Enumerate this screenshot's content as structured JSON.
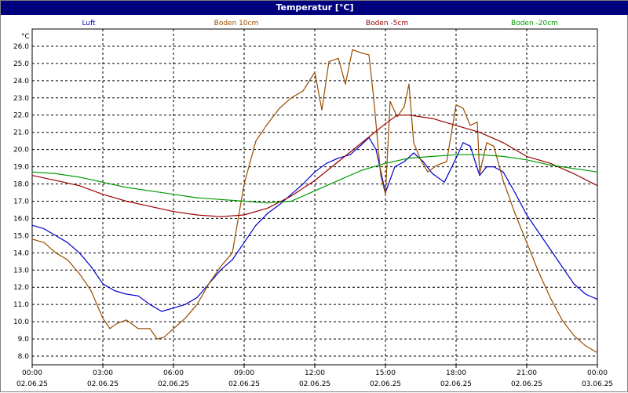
{
  "window": {
    "title": "Temperatur [°C]"
  },
  "chart_data": {
    "type": "line",
    "title": "Temperatur [°C]",
    "ylabel": "°C",
    "ylim": [
      7.5,
      27
    ],
    "grid": true,
    "legend_placement": "top",
    "y_ticks": [
      8.0,
      9.0,
      10.0,
      11.0,
      12.0,
      13.0,
      14.0,
      15.0,
      16.0,
      17.0,
      18.0,
      19.0,
      20.0,
      21.0,
      22.0,
      23.0,
      24.0,
      25.0,
      26.0
    ],
    "x_range_hours": [
      0,
      24
    ],
    "x_ticks": [
      {
        "h": 0,
        "time": "00:00",
        "date": "02.06.25"
      },
      {
        "h": 3,
        "time": "03:00",
        "date": "02.06.25"
      },
      {
        "h": 6,
        "time": "06:00",
        "date": "02.06.25"
      },
      {
        "h": 9,
        "time": "09:00",
        "date": "02.06.25"
      },
      {
        "h": 12,
        "time": "12:00",
        "date": "02.06.25"
      },
      {
        "h": 15,
        "time": "15:00",
        "date": "02.06.25"
      },
      {
        "h": 18,
        "time": "18:00",
        "date": "02.06.25"
      },
      {
        "h": 21,
        "time": "21:00",
        "date": "02.06.25"
      },
      {
        "h": 24,
        "time": "00:00",
        "date": "03.06.25"
      }
    ],
    "series": [
      {
        "name": "Luft",
        "color": "#0000cc",
        "points": [
          [
            0,
            15.6
          ],
          [
            0.5,
            15.4
          ],
          [
            1,
            15.0
          ],
          [
            1.5,
            14.6
          ],
          [
            2,
            14.0
          ],
          [
            2.5,
            13.2
          ],
          [
            3,
            12.2
          ],
          [
            3.5,
            11.8
          ],
          [
            4,
            11.6
          ],
          [
            4.5,
            11.5
          ],
          [
            5,
            11.0
          ],
          [
            5.5,
            10.6
          ],
          [
            6,
            10.8
          ],
          [
            6.5,
            11.0
          ],
          [
            7,
            11.4
          ],
          [
            7.5,
            12.2
          ],
          [
            8,
            13.0
          ],
          [
            8.5,
            13.6
          ],
          [
            9,
            14.6
          ],
          [
            9.5,
            15.6
          ],
          [
            10,
            16.3
          ],
          [
            10.5,
            16.8
          ],
          [
            11,
            17.4
          ],
          [
            11.5,
            18.0
          ],
          [
            12,
            18.7
          ],
          [
            12.5,
            19.2
          ],
          [
            13,
            19.5
          ],
          [
            13.5,
            19.7
          ],
          [
            14,
            20.3
          ],
          [
            14.3,
            20.7
          ],
          [
            14.6,
            20.0
          ],
          [
            15,
            17.5
          ],
          [
            15.4,
            19.0
          ],
          [
            15.8,
            19.3
          ],
          [
            16.2,
            19.8
          ],
          [
            16.6,
            19.3
          ],
          [
            17,
            18.6
          ],
          [
            17.5,
            18.1
          ],
          [
            18,
            19.5
          ],
          [
            18.3,
            20.4
          ],
          [
            18.6,
            20.2
          ],
          [
            19,
            18.5
          ],
          [
            19.3,
            19.0
          ],
          [
            19.6,
            19.0
          ],
          [
            20,
            18.7
          ],
          [
            20.5,
            17.5
          ],
          [
            21,
            16.2
          ],
          [
            21.5,
            15.2
          ],
          [
            22,
            14.2
          ],
          [
            22.5,
            13.2
          ],
          [
            23,
            12.2
          ],
          [
            23.5,
            11.6
          ],
          [
            24,
            11.3
          ]
        ]
      },
      {
        "name": "Boden 10cm",
        "color": "#994c00",
        "points": [
          [
            0,
            14.8
          ],
          [
            0.5,
            14.6
          ],
          [
            1,
            14.0
          ],
          [
            1.5,
            13.6
          ],
          [
            2,
            12.8
          ],
          [
            2.5,
            11.8
          ],
          [
            3,
            10.2
          ],
          [
            3.3,
            9.6
          ],
          [
            3.6,
            9.9
          ],
          [
            4,
            10.1
          ],
          [
            4.5,
            9.6
          ],
          [
            5,
            9.6
          ],
          [
            5.3,
            9.0
          ],
          [
            5.6,
            9.1
          ],
          [
            6,
            9.6
          ],
          [
            6.5,
            10.2
          ],
          [
            7,
            11.0
          ],
          [
            7.5,
            12.2
          ],
          [
            8,
            13.2
          ],
          [
            8.5,
            14.0
          ],
          [
            9,
            18.0
          ],
          [
            9.5,
            20.5
          ],
          [
            10,
            21.5
          ],
          [
            10.5,
            22.4
          ],
          [
            11,
            23.0
          ],
          [
            11.5,
            23.4
          ],
          [
            12,
            24.5
          ],
          [
            12.3,
            22.3
          ],
          [
            12.6,
            25.1
          ],
          [
            13,
            25.3
          ],
          [
            13.3,
            23.8
          ],
          [
            13.6,
            25.8
          ],
          [
            14,
            25.6
          ],
          [
            14.3,
            25.5
          ],
          [
            14.5,
            23.0
          ],
          [
            14.8,
            18.5
          ],
          [
            15,
            17.4
          ],
          [
            15.2,
            22.8
          ],
          [
            15.5,
            21.9
          ],
          [
            15.8,
            22.5
          ],
          [
            16,
            23.8
          ],
          [
            16.2,
            20.4
          ],
          [
            16.5,
            19.4
          ],
          [
            16.8,
            18.7
          ],
          [
            17.2,
            19.1
          ],
          [
            17.6,
            19.3
          ],
          [
            18,
            22.6
          ],
          [
            18.3,
            22.4
          ],
          [
            18.6,
            21.4
          ],
          [
            18.9,
            21.6
          ],
          [
            19,
            18.6
          ],
          [
            19.3,
            20.4
          ],
          [
            19.6,
            20.2
          ],
          [
            20,
            18.2
          ],
          [
            20.5,
            16.3
          ],
          [
            21,
            14.6
          ],
          [
            21.5,
            12.9
          ],
          [
            22,
            11.4
          ],
          [
            22.5,
            10.1
          ],
          [
            23,
            9.2
          ],
          [
            23.5,
            8.6
          ],
          [
            24,
            8.2
          ]
        ]
      },
      {
        "name": "Boden -5cm",
        "color": "#990000",
        "points": [
          [
            0,
            18.5
          ],
          [
            1,
            18.2
          ],
          [
            2,
            17.9
          ],
          [
            3,
            17.4
          ],
          [
            4,
            17.0
          ],
          [
            5,
            16.7
          ],
          [
            6,
            16.4
          ],
          [
            7,
            16.2
          ],
          [
            8,
            16.1
          ],
          [
            9,
            16.2
          ],
          [
            10,
            16.6
          ],
          [
            11,
            17.3
          ],
          [
            12,
            18.2
          ],
          [
            13,
            19.3
          ],
          [
            14,
            20.4
          ],
          [
            15,
            21.5
          ],
          [
            15.5,
            22.0
          ],
          [
            16,
            22.0
          ],
          [
            17,
            21.8
          ],
          [
            18,
            21.4
          ],
          [
            19,
            21.0
          ],
          [
            20,
            20.4
          ],
          [
            21,
            19.6
          ],
          [
            22,
            19.2
          ],
          [
            23,
            18.6
          ],
          [
            24,
            17.9
          ]
        ]
      },
      {
        "name": "Boden -20cm",
        "color": "#009900",
        "points": [
          [
            0,
            18.7
          ],
          [
            1,
            18.6
          ],
          [
            2,
            18.4
          ],
          [
            3,
            18.1
          ],
          [
            4,
            17.8
          ],
          [
            5,
            17.6
          ],
          [
            6,
            17.4
          ],
          [
            7,
            17.2
          ],
          [
            8,
            17.1
          ],
          [
            9,
            17.0
          ],
          [
            10,
            16.9
          ],
          [
            11,
            17.0
          ],
          [
            12,
            17.6
          ],
          [
            13,
            18.2
          ],
          [
            14,
            18.8
          ],
          [
            15,
            19.2
          ],
          [
            16,
            19.5
          ],
          [
            17,
            19.6
          ],
          [
            18,
            19.7
          ],
          [
            19,
            19.7
          ],
          [
            20,
            19.6
          ],
          [
            21,
            19.4
          ],
          [
            22,
            19.1
          ],
          [
            23,
            18.9
          ],
          [
            24,
            18.7
          ]
        ]
      }
    ]
  }
}
